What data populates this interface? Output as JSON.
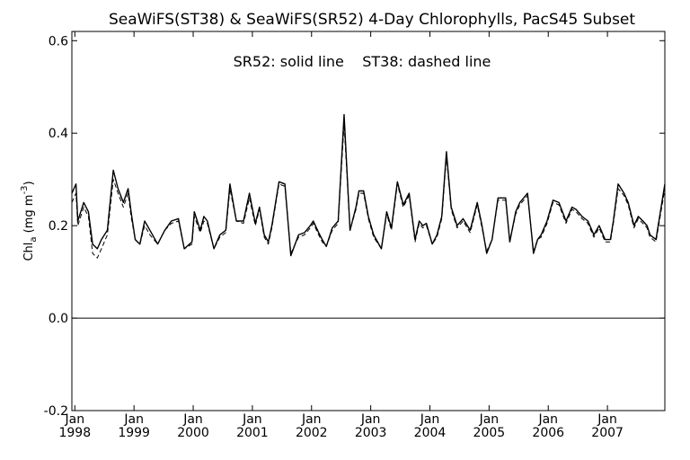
{
  "chart_data": {
    "type": "line",
    "title": "SeaWiFS(ST38) & SeaWiFS(SR52) 4-Day Chlorophylls, PacS45 Subset",
    "annotation": "SR52: solid line    ST38: dashed line",
    "ylabel": {
      "main": "Chl",
      "sub": "a",
      "units": " (mg m",
      "sup": "-3",
      "close": ")"
    },
    "ylim": [
      -0.2,
      0.62
    ],
    "yticks": [
      {
        "value": -0.2,
        "label": "-0.2"
      },
      {
        "value": 0.0,
        "label": "0.0"
      },
      {
        "value": 0.2,
        "label": "0.2"
      },
      {
        "value": 0.4,
        "label": "0.4"
      },
      {
        "value": 0.6,
        "label": "0.6"
      }
    ],
    "xlim": [
      1997.95,
      2007.97
    ],
    "xticks": [
      {
        "value": 1998.0,
        "month": "Jan",
        "year": "1998"
      },
      {
        "value": 1999.0,
        "month": "Jan",
        "year": "1999"
      },
      {
        "value": 2000.0,
        "month": "Jan",
        "year": "2000"
      },
      {
        "value": 2001.0,
        "month": "Jan",
        "year": "2001"
      },
      {
        "value": 2002.0,
        "month": "Jan",
        "year": "2002"
      },
      {
        "value": 2003.0,
        "month": "Jan",
        "year": "2003"
      },
      {
        "value": 2004.0,
        "month": "Jan",
        "year": "2004"
      },
      {
        "value": 2005.0,
        "month": "Jan",
        "year": "2005"
      },
      {
        "value": 2006.0,
        "month": "Jan",
        "year": "2006"
      },
      {
        "value": 2007.0,
        "month": "Jan",
        "year": "2007"
      }
    ],
    "zero_line": 0.0,
    "grid": false,
    "series": [
      {
        "name": "SR52",
        "style": "solid",
        "x": [
          1997.95,
          1998.02,
          1998.05,
          1998.1,
          1998.15,
          1998.23,
          1998.3,
          1998.38,
          1998.45,
          1998.55,
          1998.65,
          1998.73,
          1998.82,
          1998.9,
          1998.95,
          1999.02,
          1999.1,
          1999.18,
          1999.27,
          1999.4,
          1999.52,
          1999.63,
          1999.75,
          1999.85,
          1999.98,
          2000.02,
          2000.12,
          2000.18,
          2000.24,
          2000.35,
          2000.45,
          2000.55,
          2000.62,
          2000.73,
          2000.85,
          2000.95,
          2001.05,
          2001.12,
          2001.2,
          2001.27,
          2001.33,
          2001.45,
          2001.55,
          2001.65,
          2001.78,
          2001.88,
          2001.98,
          2002.03,
          2002.12,
          2002.18,
          2002.25,
          2002.35,
          2002.45,
          2002.55,
          2002.65,
          2002.75,
          2002.8,
          2002.88,
          2002.96,
          2003.05,
          2003.18,
          2003.27,
          2003.35,
          2003.45,
          2003.55,
          2003.65,
          2003.75,
          2003.82,
          2003.88,
          2003.94,
          2004.04,
          2004.12,
          2004.2,
          2004.28,
          2004.36,
          2004.46,
          2004.56,
          2004.68,
          2004.8,
          2004.88,
          2004.96,
          2005.05,
          2005.15,
          2005.23,
          2005.28,
          2005.35,
          2005.45,
          2005.52,
          2005.65,
          2005.75,
          2005.82,
          2005.88,
          2005.98,
          2006.08,
          2006.18,
          2006.3,
          2006.4,
          2006.47,
          2006.57,
          2006.67,
          2006.77,
          2006.86,
          2006.96,
          2007.05,
          2007.1,
          2007.18,
          2007.28,
          2007.35,
          2007.45,
          2007.52,
          2007.6,
          2007.67,
          2007.72,
          2007.82,
          2007.97
        ],
        "y": [
          0.27,
          0.29,
          0.21,
          0.23,
          0.25,
          0.23,
          0.16,
          0.15,
          0.17,
          0.19,
          0.32,
          0.28,
          0.25,
          0.28,
          0.23,
          0.17,
          0.16,
          0.21,
          0.19,
          0.16,
          0.19,
          0.21,
          0.215,
          0.15,
          0.165,
          0.23,
          0.19,
          0.22,
          0.21,
          0.15,
          0.18,
          0.19,
          0.29,
          0.21,
          0.21,
          0.27,
          0.205,
          0.24,
          0.18,
          0.165,
          0.2,
          0.295,
          0.29,
          0.135,
          0.18,
          0.185,
          0.2,
          0.21,
          0.185,
          0.17,
          0.155,
          0.195,
          0.21,
          0.44,
          0.19,
          0.24,
          0.275,
          0.275,
          0.22,
          0.18,
          0.15,
          0.23,
          0.195,
          0.295,
          0.245,
          0.27,
          0.17,
          0.21,
          0.2,
          0.205,
          0.16,
          0.18,
          0.22,
          0.36,
          0.24,
          0.2,
          0.215,
          0.19,
          0.25,
          0.2,
          0.14,
          0.17,
          0.26,
          0.26,
          0.26,
          0.165,
          0.23,
          0.25,
          0.27,
          0.14,
          0.17,
          0.18,
          0.21,
          0.255,
          0.25,
          0.21,
          0.24,
          0.235,
          0.22,
          0.21,
          0.18,
          0.2,
          0.17,
          0.17,
          0.21,
          0.29,
          0.27,
          0.25,
          0.2,
          0.22,
          0.21,
          0.2,
          0.18,
          0.17,
          0.29
        ]
      },
      {
        "name": "ST38",
        "style": "dashed",
        "x": [
          1997.95,
          1998.02,
          1998.05,
          1998.1,
          1998.15,
          1998.23,
          1998.3,
          1998.38,
          1998.45,
          1998.55,
          1998.65,
          1998.73,
          1998.82,
          1998.9,
          1998.95,
          1999.02,
          1999.1,
          1999.18,
          1999.27,
          1999.4,
          1999.52,
          1999.63,
          1999.75,
          1999.85,
          1999.98,
          2000.02,
          2000.12,
          2000.18,
          2000.24,
          2000.35,
          2000.45,
          2000.55,
          2000.62,
          2000.73,
          2000.85,
          2000.95,
          2001.05,
          2001.12,
          2001.2,
          2001.27,
          2001.33,
          2001.45,
          2001.55,
          2001.65,
          2001.78,
          2001.88,
          2001.98,
          2002.03,
          2002.12,
          2002.18,
          2002.25,
          2002.35,
          2002.45,
          2002.55,
          2002.65,
          2002.75,
          2002.8,
          2002.88,
          2002.96,
          2003.05,
          2003.18,
          2003.27,
          2003.35,
          2003.45,
          2003.55,
          2003.65,
          2003.75,
          2003.82,
          2003.88,
          2003.94,
          2004.04,
          2004.12,
          2004.2,
          2004.28,
          2004.36,
          2004.46,
          2004.56,
          2004.68,
          2004.8,
          2004.88,
          2004.96,
          2005.05,
          2005.15,
          2005.23,
          2005.28,
          2005.35,
          2005.45,
          2005.52,
          2005.65,
          2005.75,
          2005.82,
          2005.88,
          2005.98,
          2006.08,
          2006.18,
          2006.3,
          2006.4,
          2006.47,
          2006.57,
          2006.67,
          2006.77,
          2006.86,
          2006.96,
          2007.05,
          2007.1,
          2007.18,
          2007.28,
          2007.35,
          2007.45,
          2007.52,
          2007.6,
          2007.67,
          2007.72,
          2007.82,
          2007.97
        ],
        "y": [
          0.25,
          0.27,
          0.2,
          0.22,
          0.24,
          0.22,
          0.14,
          0.13,
          0.15,
          0.18,
          0.3,
          0.27,
          0.24,
          0.27,
          0.22,
          0.17,
          0.16,
          0.2,
          0.18,
          0.16,
          0.19,
          0.205,
          0.21,
          0.15,
          0.16,
          0.22,
          0.185,
          0.21,
          0.205,
          0.15,
          0.175,
          0.185,
          0.28,
          0.21,
          0.205,
          0.26,
          0.2,
          0.235,
          0.175,
          0.16,
          0.195,
          0.29,
          0.285,
          0.14,
          0.175,
          0.18,
          0.195,
          0.205,
          0.18,
          0.165,
          0.155,
          0.19,
          0.205,
          0.42,
          0.19,
          0.235,
          0.27,
          0.27,
          0.215,
          0.175,
          0.15,
          0.225,
          0.19,
          0.29,
          0.24,
          0.265,
          0.165,
          0.205,
          0.195,
          0.2,
          0.16,
          0.175,
          0.215,
          0.35,
          0.235,
          0.195,
          0.21,
          0.185,
          0.245,
          0.195,
          0.145,
          0.17,
          0.255,
          0.255,
          0.255,
          0.165,
          0.225,
          0.245,
          0.265,
          0.145,
          0.17,
          0.175,
          0.205,
          0.25,
          0.245,
          0.205,
          0.235,
          0.23,
          0.215,
          0.205,
          0.175,
          0.195,
          0.165,
          0.165,
          0.205,
          0.28,
          0.265,
          0.245,
          0.195,
          0.215,
          0.205,
          0.195,
          0.175,
          0.165,
          0.28
        ]
      }
    ]
  }
}
